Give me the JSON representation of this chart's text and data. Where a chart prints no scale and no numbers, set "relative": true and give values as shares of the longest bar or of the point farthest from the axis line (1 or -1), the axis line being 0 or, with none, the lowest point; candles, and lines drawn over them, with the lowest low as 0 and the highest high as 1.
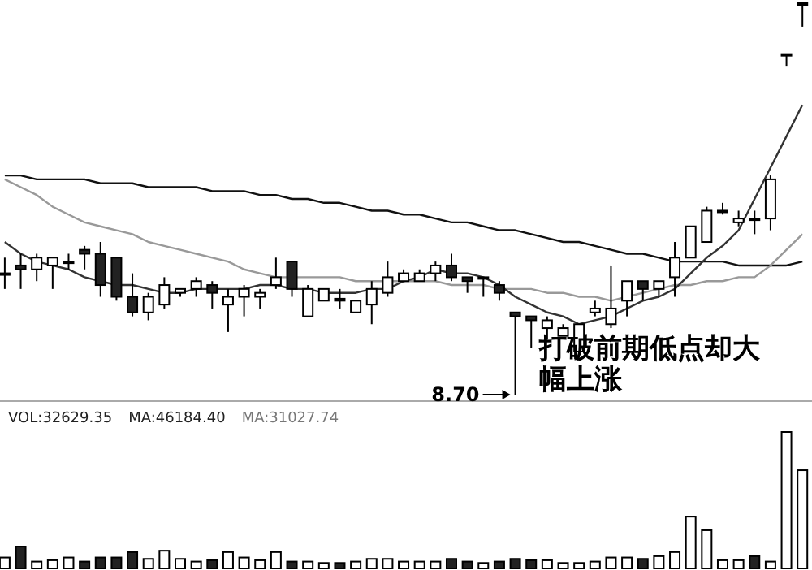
{
  "chart_data": [
    {
      "type": "candlestick",
      "relative": true,
      "categories": [
        null,
        null,
        null,
        null,
        null,
        null,
        null,
        null,
        null,
        null,
        null,
        null,
        null,
        null,
        null,
        null,
        null,
        null,
        null,
        null,
        null,
        null,
        null,
        null,
        null,
        null,
        null,
        null,
        null,
        null,
        null,
        null,
        null,
        null,
        null,
        null,
        null,
        null,
        null,
        null,
        null,
        null,
        null,
        null,
        null,
        null,
        null,
        null,
        null,
        null,
        null
      ],
      "ohlc": [
        [
          0.31,
          0.35,
          0.27,
          0.31
        ],
        [
          0.33,
          0.36,
          0.27,
          0.32
        ],
        [
          0.32,
          0.36,
          0.29,
          0.35
        ],
        [
          0.33,
          0.35,
          0.27,
          0.35
        ],
        [
          0.34,
          0.36,
          0.32,
          0.34
        ],
        [
          0.37,
          0.38,
          0.32,
          0.36
        ],
        [
          0.36,
          0.39,
          0.25,
          0.28
        ],
        [
          0.35,
          0.35,
          0.24,
          0.25
        ],
        [
          0.25,
          0.31,
          0.2,
          0.21
        ],
        [
          0.21,
          0.26,
          0.19,
          0.25
        ],
        [
          0.23,
          0.3,
          0.22,
          0.28
        ],
        [
          0.26,
          0.27,
          0.25,
          0.27
        ],
        [
          0.27,
          0.3,
          0.25,
          0.29
        ],
        [
          0.28,
          0.29,
          0.22,
          0.26
        ],
        [
          0.23,
          0.27,
          0.16,
          0.25
        ],
        [
          0.25,
          0.28,
          0.2,
          0.27
        ],
        [
          0.25,
          0.27,
          0.22,
          0.26
        ],
        [
          0.28,
          0.35,
          0.27,
          0.3
        ],
        [
          0.34,
          0.34,
          0.25,
          0.27
        ],
        [
          0.2,
          0.28,
          0.2,
          0.27
        ],
        [
          0.24,
          0.27,
          0.24,
          0.27
        ],
        [
          0.245,
          0.27,
          0.22,
          0.24
        ],
        [
          0.21,
          0.24,
          0.21,
          0.24
        ],
        [
          0.23,
          0.29,
          0.18,
          0.27
        ],
        [
          0.26,
          0.34,
          0.25,
          0.3
        ],
        [
          0.29,
          0.32,
          0.29,
          0.31
        ],
        [
          0.29,
          0.32,
          0.29,
          0.31
        ],
        [
          0.31,
          0.34,
          0.29,
          0.33
        ],
        [
          0.33,
          0.36,
          0.29,
          0.3
        ],
        [
          0.3,
          0.3,
          0.26,
          0.29
        ],
        [
          0.3,
          0.3,
          0.25,
          0.3
        ],
        [
          0.28,
          0.29,
          0.24,
          0.26
        ],
        [
          0.21,
          0.21,
          0,
          0.2
        ],
        [
          0.2,
          0.2,
          0.12,
          0.19
        ],
        [
          0.17,
          0.2,
          0.14,
          0.19
        ],
        [
          0.15,
          0.18,
          0.15,
          0.17
        ],
        [
          0.11,
          0.18,
          0.11,
          0.18
        ],
        [
          0.21,
          0.24,
          0.2,
          0.22
        ],
        [
          0.18,
          0.33,
          0.17,
          0.22
        ],
        [
          0.24,
          0.29,
          0.2,
          0.29
        ],
        [
          0.29,
          0.29,
          0.24,
          0.27
        ],
        [
          0.27,
          0.29,
          0.25,
          0.29
        ],
        [
          0.3,
          0.39,
          0.25,
          0.35
        ],
        [
          0.35,
          0.43,
          0.35,
          0.43
        ],
        [
          0.39,
          0.48,
          0.39,
          0.47
        ],
        [
          0.47,
          0.49,
          0.46,
          0.47
        ],
        [
          0.44,
          0.47,
          0.43,
          0.45
        ],
        [
          0.45,
          0.47,
          0.41,
          0.45
        ],
        [
          0.45,
          0.56,
          0.42,
          0.55
        ],
        [
          0.87,
          0.87,
          0.84,
          0.87
        ],
        [
          1.0,
          1.0,
          0.94,
          1.0
        ]
      ],
      "series": [
        {
          "type": "line",
          "color": "#111111",
          "values": [
            0.56,
            0.56,
            0.55,
            0.55,
            0.55,
            0.55,
            0.54,
            0.54,
            0.54,
            0.53,
            0.53,
            0.53,
            0.53,
            0.52,
            0.52,
            0.52,
            0.51,
            0.51,
            0.5,
            0.5,
            0.49,
            0.49,
            0.48,
            0.47,
            0.47,
            0.46,
            0.46,
            0.45,
            0.44,
            0.44,
            0.43,
            0.42,
            0.42,
            0.41,
            0.4,
            0.39,
            0.39,
            0.38,
            0.37,
            0.36,
            0.36,
            0.35,
            0.34,
            0.34,
            0.34,
            0.34,
            0.33,
            0.33,
            0.33,
            0.33,
            0.34
          ]
        },
        {
          "type": "line",
          "color": "#999999",
          "values": [
            0.55,
            0.53,
            0.51,
            0.48,
            0.46,
            0.44,
            0.43,
            0.42,
            0.41,
            0.39,
            0.38,
            0.37,
            0.36,
            0.35,
            0.34,
            0.32,
            0.31,
            0.3,
            0.3,
            0.3,
            0.3,
            0.3,
            0.29,
            0.29,
            0.29,
            0.29,
            0.29,
            0.29,
            0.28,
            0.28,
            0.28,
            0.27,
            0.27,
            0.27,
            0.26,
            0.26,
            0.25,
            0.25,
            0.24,
            0.25,
            0.26,
            0.27,
            0.28,
            0.28,
            0.29,
            0.29,
            0.3,
            0.3,
            0.33,
            0.37,
            0.41
          ]
        },
        {
          "type": "line",
          "color": "#333333",
          "values": [
            0.39,
            0.36,
            0.34,
            0.33,
            0.32,
            0.3,
            0.29,
            0.28,
            0.28,
            0.27,
            0.26,
            0.26,
            0.27,
            0.27,
            0.27,
            0.27,
            0.28,
            0.28,
            0.27,
            0.27,
            0.26,
            0.26,
            0.26,
            0.27,
            0.27,
            0.29,
            0.3,
            0.32,
            0.31,
            0.31,
            0.3,
            0.28,
            0.25,
            0.23,
            0.21,
            0.2,
            0.18,
            0.19,
            0.2,
            0.22,
            0.24,
            0.25,
            0.27,
            0.31,
            0.35,
            0.38,
            0.42,
            0.5,
            0.58,
            0.66,
            0.74
          ]
        }
      ],
      "annotations": [
        "8.70",
        "打破前期低点却大幅上涨"
      ]
    },
    {
      "type": "bar",
      "relative": true,
      "categories": [
        null,
        null,
        null,
        null,
        null,
        null,
        null,
        null,
        null,
        null,
        null,
        null,
        null,
        null,
        null,
        null,
        null,
        null,
        null,
        null,
        null,
        null,
        null,
        null,
        null,
        null,
        null,
        null,
        null,
        null,
        null,
        null,
        null,
        null,
        null,
        null,
        null,
        null,
        null,
        null,
        null,
        null,
        null,
        null,
        null,
        null,
        null,
        null,
        null,
        null,
        null
      ],
      "values": [
        0.08,
        0.16,
        0.05,
        0.06,
        0.08,
        0.05,
        0.08,
        0.08,
        0.12,
        0.07,
        0.13,
        0.07,
        0.05,
        0.06,
        0.12,
        0.08,
        0.06,
        0.12,
        0.05,
        0.05,
        0.04,
        0.04,
        0.05,
        0.07,
        0.07,
        0.05,
        0.05,
        0.05,
        0.07,
        0.05,
        0.04,
        0.05,
        0.07,
        0.06,
        0.06,
        0.04,
        0.04,
        0.05,
        0.08,
        0.08,
        0.07,
        0.09,
        0.12,
        0.38,
        0.28,
        0.06,
        0.06,
        0.09,
        0.05,
        1.0,
        0.72
      ],
      "colors": [
        "#ffffff",
        "#222222",
        "#ffffff",
        "#ffffff",
        "#ffffff",
        "#222222",
        "#222222",
        "#222222",
        "#222222",
        "#ffffff",
        "#ffffff",
        "#ffffff",
        "#ffffff",
        "#222222",
        "#ffffff",
        "#ffffff",
        "#ffffff",
        "#ffffff",
        "#222222",
        "#ffffff",
        "#ffffff",
        "#222222",
        "#ffffff",
        "#ffffff",
        "#ffffff",
        "#ffffff",
        "#ffffff",
        "#ffffff",
        "#222222",
        "#222222",
        "#ffffff",
        "#222222",
        "#222222",
        "#222222",
        "#ffffff",
        "#ffffff",
        "#ffffff",
        "#ffffff",
        "#ffffff",
        "#ffffff",
        "#222222",
        "#ffffff",
        "#ffffff",
        "#ffffff",
        "#ffffff",
        "#ffffff",
        "#ffffff",
        "#222222",
        "#ffffff",
        "#ffffff",
        "#ffffff"
      ],
      "annotations": [
        "VOL:32629.35",
        "MA:46184.40",
        "MA:31027.74"
      ]
    }
  ]
}
